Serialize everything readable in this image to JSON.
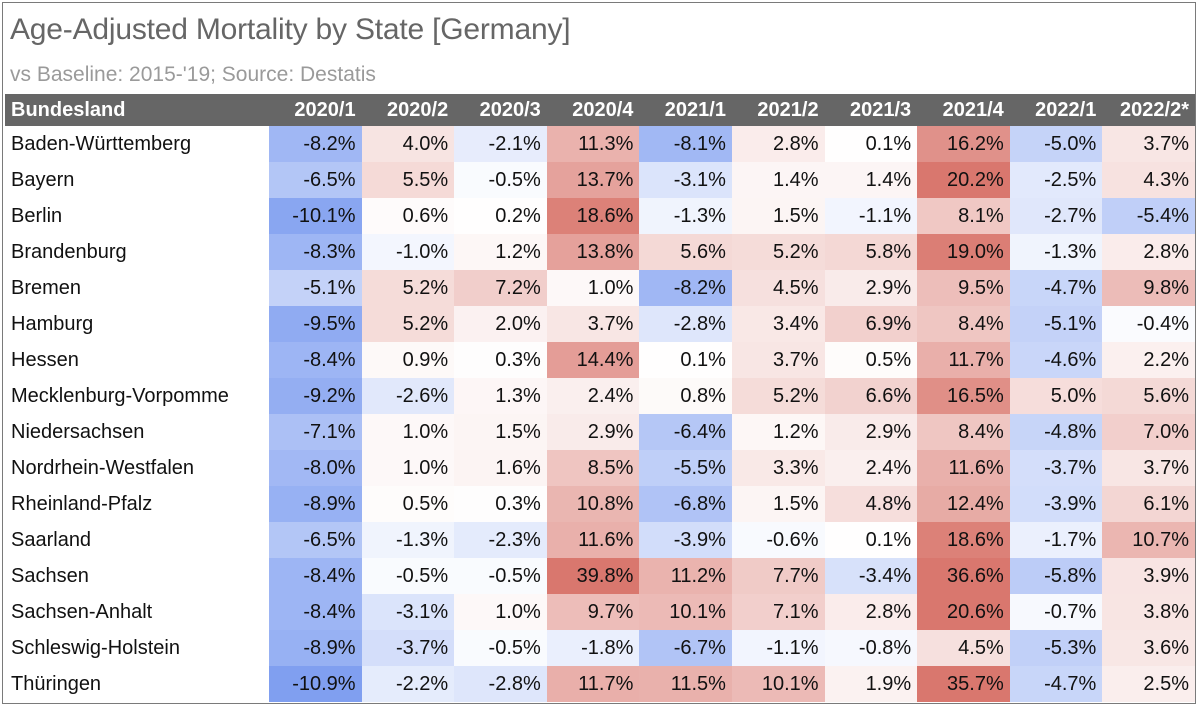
{
  "chart_data": {
    "type": "table",
    "title": "Age-Adjusted Mortality by State [Germany]",
    "subtitle": "vs Baseline: 2015-'19; Source: Destatis",
    "row_header": "Bundesland",
    "columns": [
      "2020/1",
      "2020/2",
      "2020/3",
      "2020/4",
      "2021/1",
      "2021/2",
      "2021/3",
      "2021/4",
      "2022/1",
      "2022/2*"
    ],
    "rows": [
      {
        "state": "Baden-Württemberg",
        "values": [
          "-8.2%",
          "4.0%",
          "-2.1%",
          "11.3%",
          "-8.1%",
          "2.8%",
          "0.1%",
          "16.2%",
          "-5.0%",
          "3.7%"
        ]
      },
      {
        "state": "Bayern",
        "values": [
          "-6.5%",
          "5.5%",
          "-0.5%",
          "13.7%",
          "-3.1%",
          "1.4%",
          "1.4%",
          "20.2%",
          "-2.5%",
          "4.3%"
        ]
      },
      {
        "state": "Berlin",
        "values": [
          "-10.1%",
          "0.6%",
          "0.2%",
          "18.6%",
          "-1.3%",
          "1.5%",
          "-1.1%",
          "8.1%",
          "-2.7%",
          "-5.4%"
        ]
      },
      {
        "state": "Brandenburg",
        "values": [
          "-8.3%",
          "-1.0%",
          "1.2%",
          "13.8%",
          "5.6%",
          "5.2%",
          "5.8%",
          "19.0%",
          "-1.3%",
          "2.8%"
        ]
      },
      {
        "state": "Bremen",
        "values": [
          "-5.1%",
          "5.2%",
          "7.2%",
          "1.0%",
          "-8.2%",
          "4.5%",
          "2.9%",
          "9.5%",
          "-4.7%",
          "9.8%"
        ]
      },
      {
        "state": "Hamburg",
        "values": [
          "-9.5%",
          "5.2%",
          "2.0%",
          "3.7%",
          "-2.8%",
          "3.4%",
          "6.9%",
          "8.4%",
          "-5.1%",
          "-0.4%"
        ]
      },
      {
        "state": "Hessen",
        "values": [
          "-8.4%",
          "0.9%",
          "0.3%",
          "14.4%",
          "0.1%",
          "3.7%",
          "0.5%",
          "11.7%",
          "-4.6%",
          "2.2%"
        ]
      },
      {
        "state": "Mecklenburg-Vorpomme",
        "values": [
          "-9.2%",
          "-2.6%",
          "1.3%",
          "2.4%",
          "0.8%",
          "5.2%",
          "6.6%",
          "16.5%",
          "5.0%",
          "5.6%"
        ]
      },
      {
        "state": "Niedersachsen",
        "values": [
          "-7.1%",
          "1.0%",
          "1.5%",
          "2.9%",
          "-6.4%",
          "1.2%",
          "2.9%",
          "8.4%",
          "-4.8%",
          "7.0%"
        ]
      },
      {
        "state": "Nordrhein-Westfalen",
        "values": [
          "-8.0%",
          "1.0%",
          "1.6%",
          "8.5%",
          "-5.5%",
          "3.3%",
          "2.4%",
          "11.6%",
          "-3.7%",
          "3.7%"
        ]
      },
      {
        "state": "Rheinland-Pfalz",
        "values": [
          "-8.9%",
          "0.5%",
          "0.3%",
          "10.8%",
          "-6.8%",
          "1.5%",
          "4.8%",
          "12.4%",
          "-3.9%",
          "6.1%"
        ]
      },
      {
        "state": "Saarland",
        "values": [
          "-6.5%",
          "-1.3%",
          "-2.3%",
          "11.6%",
          "-3.9%",
          "-0.6%",
          "0.1%",
          "18.6%",
          "-1.7%",
          "10.7%"
        ]
      },
      {
        "state": "Sachsen",
        "values": [
          "-8.4%",
          "-0.5%",
          "-0.5%",
          "39.8%",
          "11.2%",
          "7.7%",
          "-3.4%",
          "36.6%",
          "-5.8%",
          "3.9%"
        ]
      },
      {
        "state": "Sachsen-Anhalt",
        "values": [
          "-8.4%",
          "-3.1%",
          "1.0%",
          "9.7%",
          "10.1%",
          "7.1%",
          "2.8%",
          "20.6%",
          "-0.7%",
          "3.8%"
        ]
      },
      {
        "state": "Schleswig-Holstein",
        "values": [
          "-8.9%",
          "-3.7%",
          "-0.5%",
          "-1.8%",
          "-6.7%",
          "-1.1%",
          "-0.8%",
          "4.5%",
          "-5.3%",
          "3.6%"
        ]
      },
      {
        "state": "Thüringen",
        "values": [
          "-10.9%",
          "-2.2%",
          "-2.8%",
          "11.7%",
          "11.5%",
          "10.1%",
          "1.9%",
          "35.7%",
          "-4.7%",
          "2.5%"
        ]
      }
    ],
    "colors": {
      "negative": "#7f9ef0",
      "neutral": "#ffffff",
      "positive": "#d9776e",
      "header_bg": "#666666",
      "header_text": "#ffffff"
    }
  }
}
